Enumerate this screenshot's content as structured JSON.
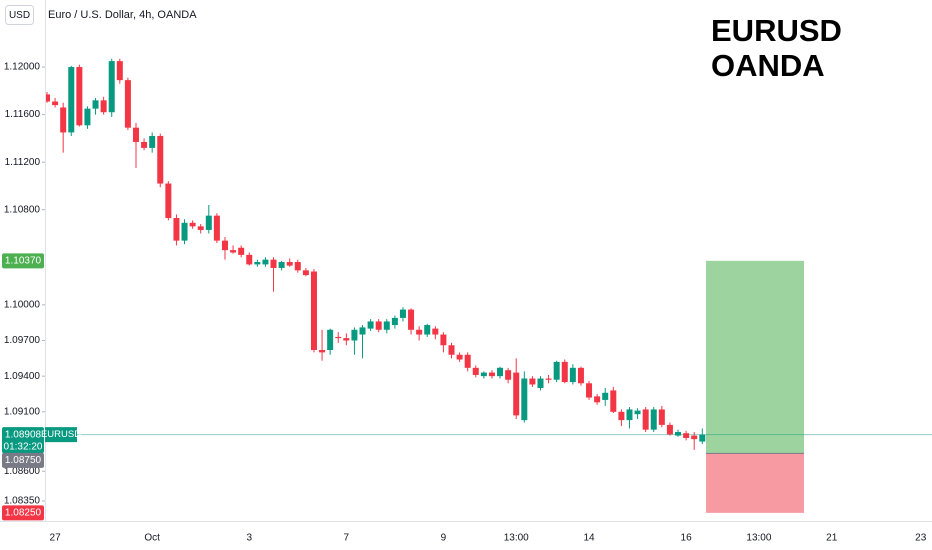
{
  "chart_data": {
    "type": "candlestick",
    "title": "Euro / U.S. Dollar, 4h, OANDA",
    "currency": "USD",
    "annotation": [
      "EURUSD",
      "OANDA"
    ],
    "up_color": "#089981",
    "down_color": "#f23645",
    "categories": [
      null,
      "27",
      null,
      null,
      null,
      null,
      null,
      null,
      null,
      null,
      null,
      null,
      null,
      "Oct",
      null,
      null,
      null,
      null,
      null,
      null,
      null,
      null,
      null,
      null,
      null,
      "3",
      null,
      null,
      null,
      null,
      null,
      null,
      null,
      null,
      null,
      null,
      null,
      "7",
      null,
      null,
      null,
      null,
      null,
      null,
      null,
      null,
      null,
      null,
      null,
      "9",
      null,
      null,
      null,
      null,
      null,
      null,
      null,
      null,
      "13:00",
      null,
      null,
      null,
      null,
      null,
      null,
      null,
      null,
      "14",
      null,
      null,
      null,
      null,
      null,
      null,
      null,
      null,
      null,
      null,
      null,
      "16",
      null,
      null,
      null,
      null,
      null,
      null,
      null,
      null,
      "13:00",
      null,
      null,
      null,
      null,
      null,
      null,
      null,
      null,
      "21",
      null,
      null,
      null,
      null,
      null,
      null,
      null,
      null,
      null,
      null,
      "23",
      null
    ],
    "open": [
      1.1177,
      1.1171,
      1.1166,
      1.1145,
      1.12,
      1.1151,
      1.1165,
      1.1172,
      1.1162,
      1.1205,
      1.1189,
      1.1149,
      1.1137,
      1.1132,
      1.1142,
      1.1102,
      1.1073,
      1.1054,
      1.1069,
      1.1066,
      1.1063,
      1.1075,
      1.1054,
      1.1046,
      1.1048,
      1.1042,
      1.1034,
      1.1034,
      1.1038,
      1.1031,
      1.1036,
      1.1036,
      1.1029,
      1.1028,
      1.0962,
      1.0962,
      1.0973,
      1.0972,
      1.097,
      1.0975,
      1.098,
      1.0986,
      1.0979,
      1.0983,
      1.0989,
      1.0996,
      1.0979,
      1.0975,
      1.098,
      1.0975,
      1.0966,
      1.0958,
      1.0958,
      1.0947,
      1.094,
      1.0943,
      1.094,
      1.0945,
      1.0943,
      1.0903,
      1.0938,
      1.093,
      1.0938,
      1.0937,
      1.0952,
      1.0935,
      1.0947,
      1.0934,
      1.0923,
      1.092,
      1.0928,
      1.091,
      1.0903,
      1.0908,
      1.0912,
      1.0895,
      1.0912,
      1.0899,
      1.089,
      1.0892,
      1.089,
      1.0885,
      null,
      null,
      null,
      null,
      null,
      null,
      null,
      null,
      null,
      null,
      null,
      null,
      null,
      null,
      null,
      null,
      null,
      null,
      null,
      null,
      null,
      null,
      null,
      null,
      null,
      null,
      null,
      null
    ],
    "high": [
      1.1179,
      1.1174,
      1.117,
      1.1201,
      1.1202,
      1.1167,
      1.1174,
      1.1175,
      1.1207,
      1.1207,
      1.1191,
      1.1153,
      1.114,
      1.1145,
      1.1144,
      1.1104,
      1.1076,
      1.1072,
      1.1071,
      1.1068,
      1.1084,
      1.1077,
      1.1057,
      1.105,
      1.105,
      1.1044,
      1.1038,
      1.104,
      1.104,
      1.1037,
      1.1039,
      1.1038,
      1.1031,
      1.103,
      1.0979,
      1.098,
      1.0977,
      1.0976,
      1.0981,
      1.0983,
      1.0988,
      1.0988,
      1.0988,
      1.0991,
      1.0998,
      1.0997,
      1.0982,
      1.0984,
      1.0982,
      1.0977,
      1.0968,
      1.096,
      1.096,
      1.0949,
      1.0944,
      1.0945,
      1.0948,
      1.0947,
      1.0955,
      1.0944,
      1.094,
      1.094,
      1.0941,
      1.0953,
      1.0954,
      1.095,
      1.0948,
      1.0936,
      1.0925,
      1.093,
      1.0931,
      1.0912,
      1.0914,
      1.0913,
      1.0914,
      1.0914,
      1.0915,
      1.0901,
      1.0895,
      1.0894,
      1.0893,
      1.0896,
      null,
      null,
      null,
      null,
      null,
      null,
      null,
      null,
      null,
      null,
      null,
      null,
      null,
      null,
      null,
      null,
      null,
      null,
      null,
      null,
      null,
      null,
      null,
      null,
      null,
      null,
      null,
      null
    ],
    "low": [
      1.117,
      1.1166,
      1.1128,
      1.1142,
      1.115,
      1.1148,
      1.116,
      1.116,
      1.1158,
      1.1186,
      1.1147,
      1.1115,
      1.113,
      1.1128,
      1.1099,
      1.1071,
      1.105,
      1.1051,
      1.1064,
      1.106,
      1.106,
      1.1052,
      1.1038,
      1.1043,
      1.104,
      1.1033,
      1.1032,
      1.1032,
      1.1011,
      1.1029,
      1.1032,
      1.1027,
      1.1024,
      1.096,
      1.0953,
      1.0958,
      1.0968,
      1.0966,
      1.0958,
      1.0955,
      1.0978,
      1.0977,
      1.0976,
      1.098,
      1.0986,
      1.0975,
      1.097,
      1.0973,
      1.0971,
      1.096,
      1.0955,
      1.0952,
      1.0944,
      1.0939,
      1.0938,
      1.0938,
      1.0938,
      1.0934,
      1.0904,
      1.0901,
      1.0931,
      1.0928,
      1.0934,
      1.0935,
      1.0934,
      1.0933,
      1.0932,
      1.092,
      1.0916,
      1.0915,
      1.0909,
      1.0898,
      1.0896,
      1.0904,
      1.0893,
      1.0893,
      1.0897,
      1.089,
      1.0889,
      1.0886,
      1.0878,
      1.0883,
      null,
      null,
      null,
      null,
      null,
      null,
      null,
      null,
      null,
      null,
      null,
      null,
      null,
      null,
      null,
      null,
      null,
      null,
      null,
      null,
      null,
      null,
      null,
      null,
      null,
      null,
      null,
      null
    ],
    "close": [
      1.1171,
      1.1168,
      1.1145,
      1.12,
      1.1151,
      1.1165,
      1.1172,
      1.1162,
      1.1205,
      1.1189,
      1.1149,
      1.1137,
      1.1132,
      1.1142,
      1.1102,
      1.1073,
      1.1054,
      1.1069,
      1.1066,
      1.1063,
      1.1075,
      1.1054,
      1.1046,
      1.1044,
      1.1042,
      1.1034,
      1.1036,
      1.1038,
      1.1031,
      1.1036,
      1.1033,
      1.1029,
      1.1025,
      1.0962,
      1.096,
      1.0979,
      1.0972,
      1.097,
      1.0979,
      1.0981,
      1.0986,
      1.0979,
      1.0986,
      1.0989,
      1.0996,
      1.0979,
      1.0975,
      1.0983,
      1.0975,
      1.0966,
      1.0958,
      1.0954,
      1.0947,
      1.0941,
      1.0943,
      1.094,
      1.0947,
      1.0937,
      1.0907,
      1.0938,
      1.0933,
      1.0938,
      1.0937,
      1.0952,
      1.0935,
      1.0947,
      1.0934,
      1.0922,
      1.0918,
      1.0926,
      1.091,
      1.0903,
      1.0912,
      1.0911,
      1.0895,
      1.0912,
      1.0899,
      1.0891,
      1.0893,
      1.0888,
      1.0887,
      1.08908,
      null,
      null,
      null,
      null,
      null,
      null,
      null,
      null,
      null,
      null,
      null,
      null,
      null,
      null,
      null,
      null,
      null,
      null,
      null,
      null,
      null,
      null,
      null,
      null,
      null,
      null,
      null,
      null
    ],
    "ylim": [
      1.0819,
      1.12564
    ],
    "yticks": [
      {
        "value": 1.12,
        "label": "1.12000"
      },
      {
        "value": 1.116,
        "label": "1.11600"
      },
      {
        "value": 1.112,
        "label": "1.11200"
      },
      {
        "value": 1.108,
        "label": "1.10800"
      },
      {
        "value": 1.1,
        "label": "1.10000"
      },
      {
        "value": 1.097,
        "label": "1.09700"
      },
      {
        "value": 1.094,
        "label": "1.09400"
      },
      {
        "value": 1.091,
        "label": "1.09100"
      },
      {
        "value": 1.086,
        "label": "1.08600"
      },
      {
        "value": 1.0835,
        "label": "1.08350"
      }
    ],
    "last_price": {
      "value": 1.08908,
      "symbol": "EURUSD",
      "countdown": "01:32:20"
    },
    "position": {
      "take_profit": {
        "value": 1.1037,
        "label": "1.10370",
        "color": "#4caf50"
      },
      "entry": {
        "value": 1.0875,
        "label": "1.08750",
        "color": "#787b86"
      },
      "stop": {
        "value": 1.0825,
        "label": "1.08250",
        "color": "#f23645"
      }
    }
  }
}
